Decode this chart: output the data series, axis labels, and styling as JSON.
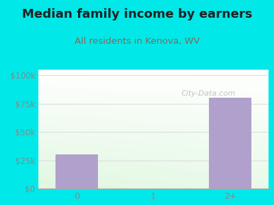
{
  "title": "Median family income by earners",
  "subtitle": "All residents in Kenova, WV",
  "categories": [
    "0",
    "1",
    "2+"
  ],
  "values": [
    30000,
    0,
    80000
  ],
  "bar_color": "#b0a0cc",
  "title_color": "#222222",
  "subtitle_color": "#886655",
  "background_color": "#00e8e8",
  "yticks": [
    0,
    25000,
    50000,
    75000,
    100000
  ],
  "ytick_labels": [
    "$0",
    "$25k",
    "$50k",
    "$75k",
    "$100k"
  ],
  "ylim": [
    0,
    105000
  ],
  "watermark": "City-Data.com",
  "title_fontsize": 13,
  "subtitle_fontsize": 9.5,
  "tick_color": "#888888",
  "grid_color": "#dddddd"
}
